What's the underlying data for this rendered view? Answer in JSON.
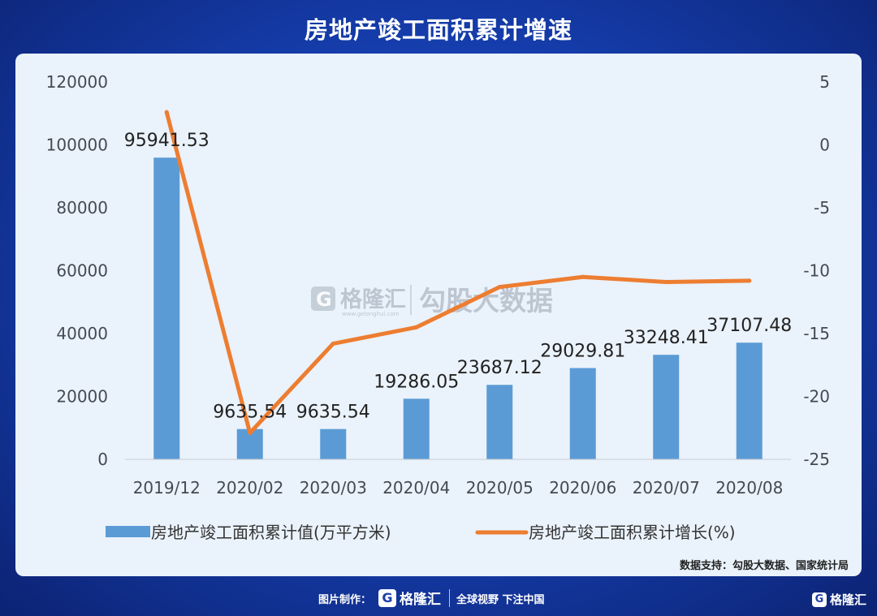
{
  "header": {
    "title": "房地产竣工面积累计增速"
  },
  "watermark": {
    "logo_letter": "G",
    "brand": "格隆汇",
    "sub": "www.gelonghui.com",
    "partner": "勾股大数据"
  },
  "source": "数据支持：勾股大数据、国家统计局",
  "footer": {
    "credit": "图片制作：",
    "logo_letter": "G",
    "logo_text": "格隆汇",
    "slogan": "全球视野 下注中国",
    "corner_logo_letter": "G",
    "corner_logo_text": "格隆汇"
  },
  "chart_data": {
    "type": "bar",
    "categories": [
      "2019/12",
      "2020/02",
      "2020/03",
      "2020/04",
      "2020/05",
      "2020/06",
      "2020/07",
      "2020/08"
    ],
    "series": [
      {
        "name": "房地产竣工面积累计值(万平方米)",
        "type": "bar",
        "axis": "left",
        "color": "#5b9bd5",
        "values": [
          95941.53,
          9635.54,
          9635.54,
          19286.05,
          23687.12,
          29029.81,
          33248.41,
          37107.48
        ],
        "labels": [
          "95941.53",
          "9635.54",
          "9635.54",
          "19286.05",
          "23687.12",
          "29029.81",
          "33248.41",
          "37107.48"
        ]
      },
      {
        "name": "房地产竣工面积累计增长(%)",
        "type": "line",
        "axis": "right",
        "color": "#ed7d31",
        "values": [
          2.6,
          -22.9,
          -15.8,
          -14.5,
          -11.3,
          -10.5,
          -10.9,
          -10.8
        ]
      }
    ],
    "y_left": {
      "min": 0,
      "max": 120000,
      "ticks": [
        0,
        20000,
        40000,
        60000,
        80000,
        100000,
        120000
      ]
    },
    "y_right": {
      "min": -25,
      "max": 5,
      "ticks": [
        5,
        0,
        -5,
        -10,
        -15,
        -20,
        -25
      ]
    },
    "grid": false,
    "legend_position": "bottom"
  }
}
